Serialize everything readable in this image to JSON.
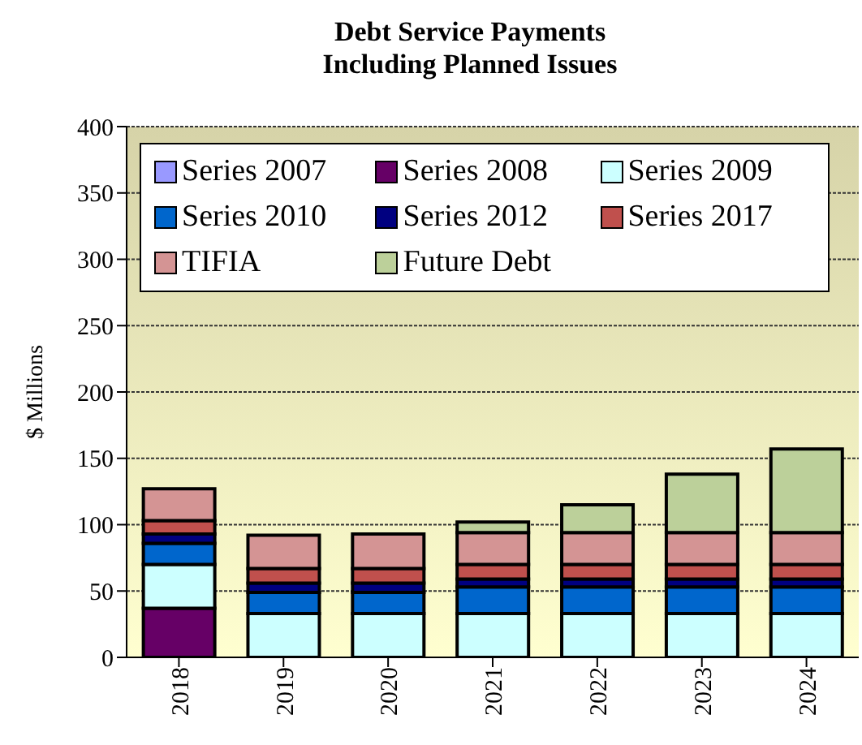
{
  "chart_data": {
    "type": "bar",
    "title": "Debt Service Payments\nIncluding Planned Issues",
    "ylabel": "$ Millions",
    "categories": [
      "2018",
      "2019",
      "2020",
      "2021",
      "2022",
      "2023",
      "2024"
    ],
    "stacked": true,
    "series": [
      {
        "name": "Series 2007",
        "color": "#9999ff",
        "values": [
          0,
          0,
          0,
          0,
          0,
          0,
          0
        ]
      },
      {
        "name": "Series 2008",
        "color": "#660066",
        "values": [
          37,
          0,
          0,
          0,
          0,
          0,
          0
        ]
      },
      {
        "name": "Series 2009",
        "color": "#ccffff",
        "values": [
          33,
          33,
          33,
          33,
          33,
          33,
          33
        ]
      },
      {
        "name": "Series 2010",
        "color": "#0066cc",
        "values": [
          16,
          16,
          16,
          20,
          20,
          20,
          20
        ]
      },
      {
        "name": "Series 2012",
        "color": "#000080",
        "values": [
          7,
          7,
          7,
          6,
          6,
          6,
          6
        ]
      },
      {
        "name": "Series 2017",
        "color": "#c0504d",
        "values": [
          10,
          11,
          11,
          11,
          11,
          11,
          11
        ]
      },
      {
        "name": "TIFIA",
        "color": "#d49494",
        "values": [
          24,
          25,
          26,
          24,
          24,
          24,
          24
        ]
      },
      {
        "name": "Future Debt",
        "color": "#bcd09a",
        "values": [
          0,
          0,
          0,
          8,
          21,
          44,
          63
        ]
      }
    ],
    "ylim": [
      0,
      400
    ],
    "yticks": [
      0,
      50,
      100,
      150,
      200,
      250,
      300,
      350,
      400
    ],
    "grid": "y",
    "legend": "top"
  }
}
